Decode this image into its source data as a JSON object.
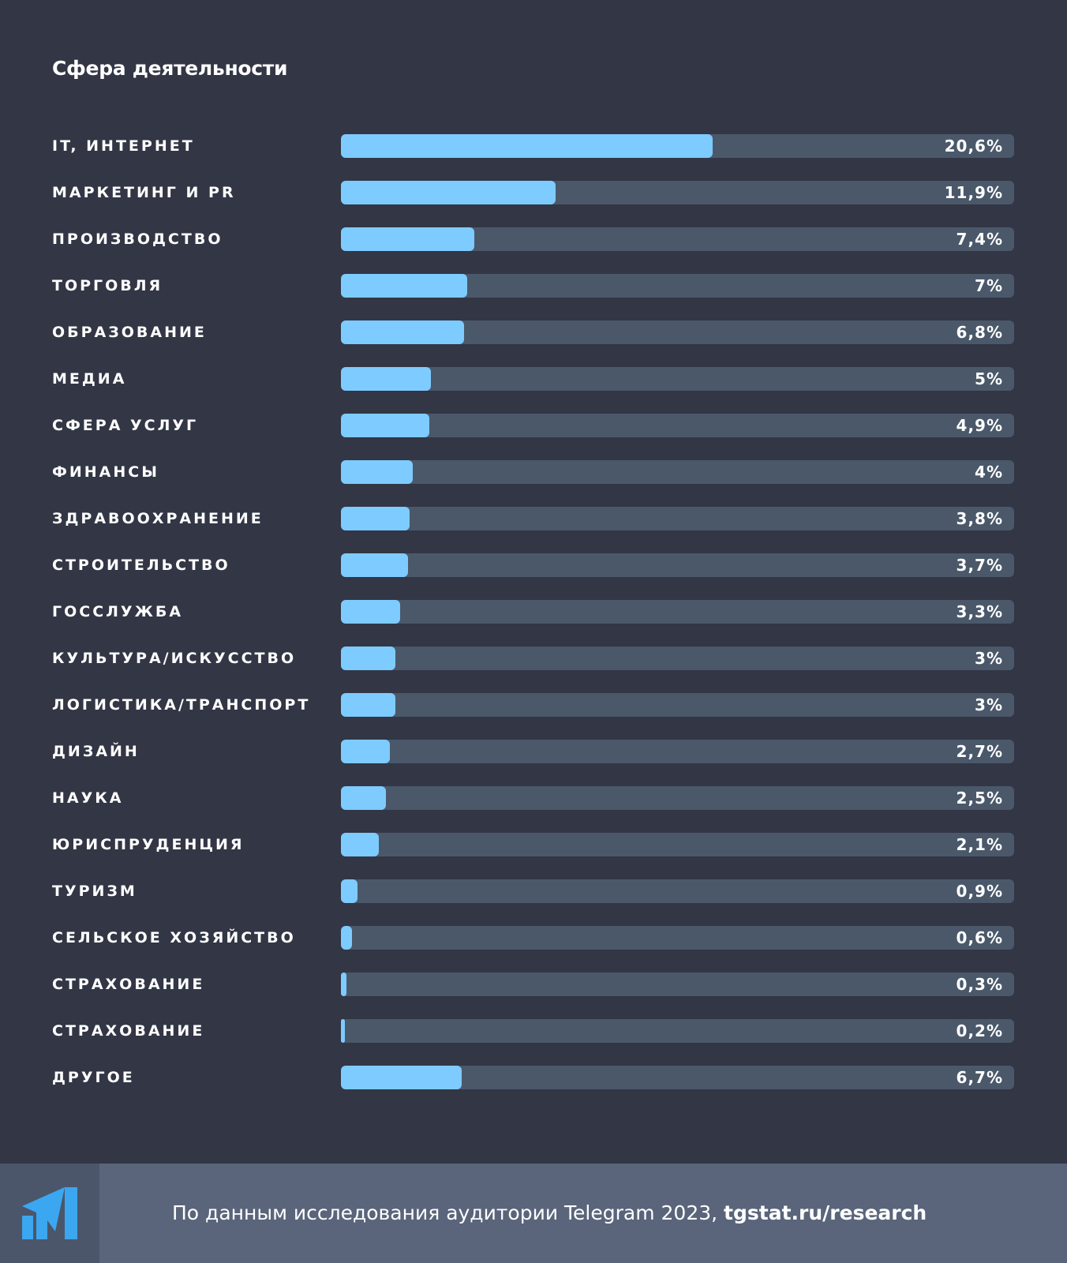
{
  "colors": {
    "background": "#323645",
    "track": "#4a586a",
    "bar": "#7ecbff",
    "footer": "#5a657b",
    "logo": "#3aa7f0"
  },
  "chart_data": {
    "type": "bar",
    "orientation": "horizontal",
    "title": "Сфера деятельности",
    "categories": [
      "IT, интернет",
      "Маркетинг и PR",
      "Производство",
      "Торговля",
      "Образование",
      "Медиа",
      "Сфера услуг",
      "Финансы",
      "Здравоохранение",
      "Строительство",
      "Госслужба",
      "Культура/искусство",
      "Логистика/транспорт",
      "Дизайн",
      "Наука",
      "Юриспруденция",
      "Туризм",
      "Сельское хозяйство",
      "Страхование",
      "Страхование",
      "Другое"
    ],
    "values": [
      20.6,
      11.9,
      7.4,
      7,
      6.8,
      5,
      4.9,
      4,
      3.8,
      3.7,
      3.3,
      3,
      3,
      2.7,
      2.5,
      2.1,
      0.9,
      0.6,
      0.3,
      0.2,
      6.7
    ],
    "value_labels": [
      "20,6%",
      "11,9%",
      "7,4%",
      "7%",
      "6,8%",
      "5%",
      "4,9%",
      "4%",
      "3,8%",
      "3,7%",
      "3,3%",
      "3%",
      "3%",
      "2,7%",
      "2,5%",
      "2,1%",
      "0,9%",
      "0,6%",
      "0,3%",
      "0,2%",
      "6,7%"
    ],
    "xlim": [
      0,
      37.3
    ],
    "grid": false
  },
  "footer": {
    "text": "По данным исследования аудитории Telegram 2023, ",
    "link": "tgstat.ru/research",
    "logo_icon": "tgstat-logo-icon"
  }
}
